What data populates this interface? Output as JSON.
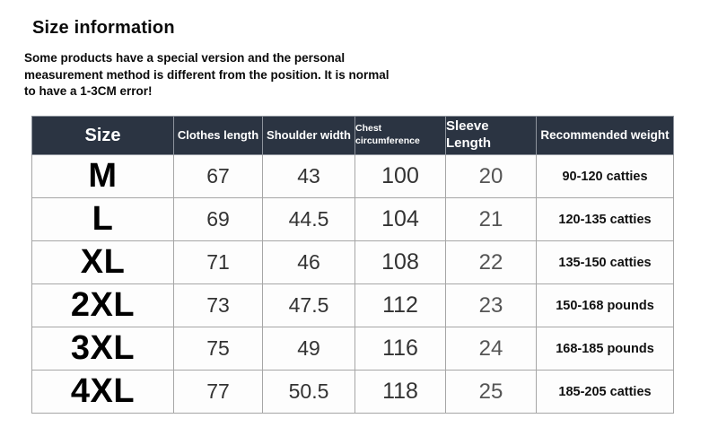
{
  "page": {
    "title": "Size information",
    "note": "Some products have a special version and the personal\nmeasurement method is different from the position. It is normal\nto have a 1-3CM error!"
  },
  "table": {
    "columns": [
      "Size",
      "Clothes length",
      "Shoulder width",
      "Chest circumference",
      "Sleeve Length",
      "Recommended weight"
    ],
    "rows": [
      {
        "size": "M",
        "clothes_length": "67",
        "shoulder_width": "43",
        "chest_circumference": "100",
        "sleeve_length": "20",
        "recommended_weight": "90-120 catties"
      },
      {
        "size": "L",
        "clothes_length": "69",
        "shoulder_width": "44.5",
        "chest_circumference": "104",
        "sleeve_length": "21",
        "recommended_weight": "120-135 catties"
      },
      {
        "size": "XL",
        "clothes_length": "71",
        "shoulder_width": "46",
        "chest_circumference": "108",
        "sleeve_length": "22",
        "recommended_weight": "135-150 catties"
      },
      {
        "size": "2XL",
        "clothes_length": "73",
        "shoulder_width": "47.5",
        "chest_circumference": "112",
        "sleeve_length": "23",
        "recommended_weight": "150-168 pounds"
      },
      {
        "size": "3XL",
        "clothes_length": "75",
        "shoulder_width": "49",
        "chest_circumference": "116",
        "sleeve_length": "24",
        "recommended_weight": "168-185 pounds"
      },
      {
        "size": "4XL",
        "clothes_length": "77",
        "shoulder_width": "50.5",
        "chest_circumference": "118",
        "sleeve_length": "25",
        "recommended_weight": "185-205 catties"
      }
    ]
  },
  "colors": {
    "header_bg": "#2b3442",
    "header_text": "#ffffff",
    "grid_line": "#a6a6a6",
    "body_bg": "#ffffff",
    "number_text": "#333333",
    "size_text": "#000000"
  }
}
